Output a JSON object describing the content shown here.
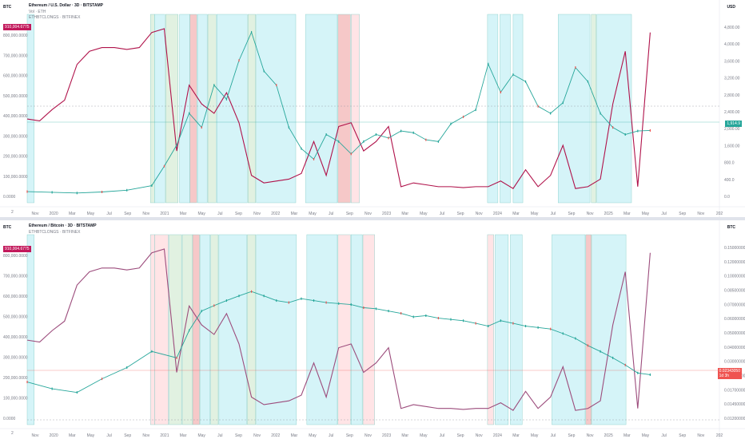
{
  "top": {
    "corner_left": "BTC",
    "corner_right": "USD",
    "title": "Ethereum / U.S. Dollar · 3D · BITSTAMP",
    "legend_vol": "Vol · ETH",
    "legend_series": "ETHBTCLONGS · BITFINEX",
    "left_tag": "910,004.6775",
    "right_tag": "1,914.9",
    "axis_bottom_left": "2"
  },
  "bottom": {
    "corner_left": "BTC",
    "corner_right": "BTC",
    "title": "Ethereum / Bitcoin · 3D · BITSTAMP",
    "legend_series": "ETHBTCLONGS · BITFINEX",
    "left_tag": "910,004.6775",
    "right_tag": "0.02343050",
    "right_tag2": "1d 3h",
    "axis_bottom_left": "2"
  },
  "chart_data": [
    {
      "type": "line",
      "title": "Ethereum / U.S. Dollar · 3D · BITSTAMP",
      "x_ticks": [
        "Nov",
        "2020",
        "Mar",
        "May",
        "Jul",
        "Sep",
        "Nov",
        "2021",
        "Mar",
        "May",
        "Jul",
        "Sep",
        "Nov",
        "2022",
        "Mar",
        "May",
        "Jul",
        "Sep",
        "Nov",
        "2023",
        "Mar",
        "May",
        "Jul",
        "Sep",
        "Nov",
        "2024",
        "Mar",
        "May",
        "Jul",
        "Sep",
        "Nov",
        "2025",
        "Mar",
        "May",
        "Jul",
        "Sep",
        "Nov",
        "202"
      ],
      "y_left_ticks": [
        "0.0000",
        "100,000.0000",
        "200,000.0000",
        "300,000.0000",
        "400,000.0000",
        "500,000.0000",
        "600,000.0000",
        "700,000.0000",
        "800,000.0000"
      ],
      "y_right_ticks": [
        "USD",
        "4,800.00",
        "4,000.00",
        "3,600.00",
        "3,200.00",
        "2,800.00",
        "2,400.00",
        "2,000.00",
        "1,600.00",
        "800.0",
        "400.0",
        "0.0"
      ],
      "series": [
        {
          "name": "ETHBTCLONGS · BITFINEX",
          "axis": "left",
          "color": "#b0124a",
          "x": [
            0,
            2,
            4,
            6,
            8,
            10,
            12,
            14,
            16,
            18,
            20,
            22,
            24,
            26,
            28,
            30,
            32,
            34,
            36,
            38,
            40,
            42,
            44,
            46,
            48,
            50,
            52,
            54,
            56,
            58,
            60,
            62,
            64,
            66,
            68,
            70,
            72,
            74,
            76,
            78,
            80,
            82,
            84,
            86,
            88,
            90,
            92,
            94,
            96,
            98,
            100
          ],
          "values": [
            420000,
            410000,
            470000,
            520000,
            710000,
            780000,
            800000,
            800000,
            790000,
            800000,
            880000,
            900000,
            250000,
            600000,
            500000,
            450000,
            560000,
            400000,
            120000,
            80000,
            90000,
            100000,
            130000,
            300000,
            120000,
            380000,
            400000,
            250000,
            300000,
            380000,
            60000,
            80000,
            70000,
            60000,
            60000,
            55000,
            60000,
            60000,
            90000,
            50000,
            150000,
            60000,
            120000,
            280000,
            50000,
            60000,
            100000,
            500000,
            780000,
            60000,
            880000
          ]
        },
        {
          "name": "Price",
          "axis": "right",
          "color": "#26a69a",
          "x": [
            0,
            4,
            8,
            12,
            16,
            20,
            22,
            24,
            26,
            28,
            30,
            32,
            34,
            36,
            38,
            40,
            42,
            44,
            46,
            48,
            50,
            52,
            54,
            56,
            58,
            60,
            62,
            64,
            66,
            68,
            70,
            72,
            74,
            76,
            78,
            80,
            82,
            84,
            86,
            88,
            90,
            92,
            94,
            96,
            98,
            100
          ],
          "values": [
            180,
            160,
            140,
            170,
            220,
            350,
            900,
            1500,
            2400,
            2000,
            3200,
            2800,
            3900,
            4700,
            3600,
            3200,
            2000,
            1400,
            1100,
            1800,
            1600,
            1250,
            1600,
            1800,
            1700,
            1900,
            1850,
            1650,
            1600,
            2100,
            2300,
            2500,
            3800,
            3000,
            3500,
            3300,
            2600,
            2400,
            2700,
            3700,
            3300,
            2400,
            2000,
            1800,
            1900,
            1914
          ]
        }
      ]
    },
    {
      "type": "line",
      "title": "Ethereum / Bitcoin · 3D · BITSTAMP",
      "x_ticks": [
        "Nov",
        "2020",
        "Mar",
        "May",
        "Jul",
        "Sep",
        "Nov",
        "2021",
        "Mar",
        "May",
        "Jul",
        "Sep",
        "Nov",
        "2022",
        "Mar",
        "May",
        "Jul",
        "Sep",
        "Nov",
        "2023",
        "Mar",
        "May",
        "Jul",
        "Sep",
        "Nov",
        "2024",
        "Mar",
        "May",
        "Jul",
        "Sep",
        "Nov",
        "2025",
        "Mar",
        "May",
        "Jul",
        "Sep",
        "Nov",
        "202"
      ],
      "y_left_ticks": [
        "0.0000",
        "100,000.0000",
        "200,000.0000",
        "300,000.0000",
        "400,000.0000",
        "500,000.0000",
        "600,000.0000",
        "700,000.0000",
        "800,000.0000"
      ],
      "y_right_ticks": [
        "BTC",
        "0.15000000",
        "0.12000000",
        "0.10000000",
        "0.08500000",
        "0.07000000",
        "0.06000000",
        "0.05000000",
        "0.04000000",
        "0.03000000",
        "0.02000000",
        "0.01700000",
        "0.01450000",
        "0.01200000"
      ],
      "series": [
        {
          "name": "ETHBTCLONGS · BITFINEX",
          "axis": "left",
          "color": "#9c4c7c",
          "x": [
            0,
            2,
            4,
            6,
            8,
            10,
            12,
            14,
            16,
            18,
            20,
            22,
            24,
            26,
            28,
            30,
            32,
            34,
            36,
            38,
            40,
            42,
            44,
            46,
            48,
            50,
            52,
            54,
            56,
            58,
            60,
            62,
            64,
            66,
            68,
            70,
            72,
            74,
            76,
            78,
            80,
            82,
            84,
            86,
            88,
            90,
            92,
            94,
            96,
            98,
            100
          ],
          "values": [
            420000,
            410000,
            470000,
            520000,
            710000,
            780000,
            800000,
            800000,
            790000,
            800000,
            880000,
            900000,
            250000,
            600000,
            500000,
            450000,
            560000,
            400000,
            120000,
            80000,
            90000,
            100000,
            130000,
            300000,
            120000,
            380000,
            400000,
            250000,
            300000,
            380000,
            60000,
            80000,
            70000,
            60000,
            60000,
            55000,
            60000,
            60000,
            90000,
            50000,
            150000,
            60000,
            120000,
            280000,
            50000,
            60000,
            100000,
            500000,
            780000,
            60000,
            880000
          ]
        },
        {
          "name": "Price",
          "axis": "right",
          "color": "#26a69a",
          "x": [
            0,
            4,
            8,
            12,
            16,
            20,
            24,
            26,
            28,
            30,
            32,
            34,
            36,
            38,
            40,
            42,
            44,
            46,
            48,
            50,
            52,
            54,
            56,
            58,
            60,
            62,
            64,
            66,
            68,
            70,
            72,
            74,
            76,
            78,
            80,
            82,
            84,
            86,
            88,
            90,
            92,
            94,
            96,
            98,
            100
          ],
          "values": [
            0.021,
            0.019,
            0.018,
            0.022,
            0.026,
            0.033,
            0.03,
            0.045,
            0.06,
            0.065,
            0.07,
            0.075,
            0.08,
            0.075,
            0.07,
            0.068,
            0.072,
            0.07,
            0.068,
            0.067,
            0.066,
            0.063,
            0.062,
            0.06,
            0.058,
            0.055,
            0.056,
            0.054,
            0.053,
            0.052,
            0.05,
            0.048,
            0.052,
            0.05,
            0.048,
            0.047,
            0.046,
            0.043,
            0.04,
            0.036,
            0.033,
            0.03,
            0.027,
            0.024,
            0.0234
          ]
        }
      ]
    }
  ],
  "top_zones": [
    {
      "s": 0,
      "e": 1,
      "c": "#b2ebf2"
    },
    {
      "s": 17.8,
      "e": 18.4,
      "c": "#c8e6c9"
    },
    {
      "s": 18.4,
      "e": 19.9,
      "c": "#b2ebf2"
    },
    {
      "s": 20,
      "e": 21.8,
      "c": "#c8e6c9"
    },
    {
      "s": 22,
      "e": 23.5,
      "c": "#b2ebf2"
    },
    {
      "s": 23.5,
      "e": 24.5,
      "c": "#ef9a9a"
    },
    {
      "s": 24.6,
      "e": 26,
      "c": "#b2ebf2"
    },
    {
      "s": 26.1,
      "e": 27.3,
      "c": "#c8e6c9"
    },
    {
      "s": 27.4,
      "e": 31.8,
      "c": "#b2ebf2"
    },
    {
      "s": 31.9,
      "e": 33,
      "c": "#c8e6c9"
    },
    {
      "s": 33.1,
      "e": 38.8,
      "c": "#b2ebf2"
    },
    {
      "s": 40.2,
      "e": 44.8,
      "c": "#b2ebf2"
    },
    {
      "s": 44.9,
      "e": 46.7,
      "c": "#ef9a9a"
    },
    {
      "s": 46.8,
      "e": 48,
      "c": "#ffcdd2"
    },
    {
      "s": 66.5,
      "e": 68,
      "c": "#b2ebf2"
    },
    {
      "s": 68.3,
      "e": 69.8,
      "c": "#b2ebf2"
    },
    {
      "s": 70.2,
      "e": 71.6,
      "c": "#b2ebf2"
    },
    {
      "s": 76.7,
      "e": 81.3,
      "c": "#b2ebf2"
    },
    {
      "s": 81.5,
      "e": 82.2,
      "c": "#c8e6c9"
    },
    {
      "s": 82.3,
      "e": 87.3,
      "c": "#b2ebf2"
    }
  ],
  "bottom_zones": [
    {
      "s": 0,
      "e": 1,
      "c": "#b2ebf2"
    },
    {
      "s": 17.8,
      "e": 18.4,
      "c": "#ffcdd2"
    },
    {
      "s": 18.4,
      "e": 20.4,
      "c": "#ffcdd2"
    },
    {
      "s": 20.5,
      "e": 22.3,
      "c": "#c8e6c9"
    },
    {
      "s": 22.4,
      "e": 23.9,
      "c": "#c8e6c9"
    },
    {
      "s": 23.9,
      "e": 24.9,
      "c": "#ef9a9a"
    },
    {
      "s": 25,
      "e": 26.4,
      "c": "#b2ebf2"
    },
    {
      "s": 26.5,
      "e": 27.6,
      "c": "#c8e6c9"
    },
    {
      "s": 27.7,
      "e": 31.7,
      "c": "#b2ebf2"
    },
    {
      "s": 31.8,
      "e": 33,
      "c": "#c8e6c9"
    },
    {
      "s": 33.1,
      "e": 38.9,
      "c": "#b2ebf2"
    },
    {
      "s": 40.4,
      "e": 44.8,
      "c": "#b2ebf2"
    },
    {
      "s": 44.9,
      "e": 46.7,
      "c": "#ffcdd2"
    },
    {
      "s": 46.8,
      "e": 48.4,
      "c": "#b2ebf2"
    },
    {
      "s": 48.5,
      "e": 50.2,
      "c": "#ffcdd2"
    },
    {
      "s": 66.5,
      "e": 67.4,
      "c": "#ffcdd2"
    },
    {
      "s": 67.6,
      "e": 69.5,
      "c": "#b2ebf2"
    },
    {
      "s": 69.8,
      "e": 71.5,
      "c": "#b2ebf2"
    },
    {
      "s": 75.8,
      "e": 80.6,
      "c": "#b2ebf2"
    },
    {
      "s": 80.7,
      "e": 81.5,
      "c": "#ef9a9a"
    },
    {
      "s": 81.6,
      "e": 86.5,
      "c": "#b2ebf2"
    }
  ]
}
